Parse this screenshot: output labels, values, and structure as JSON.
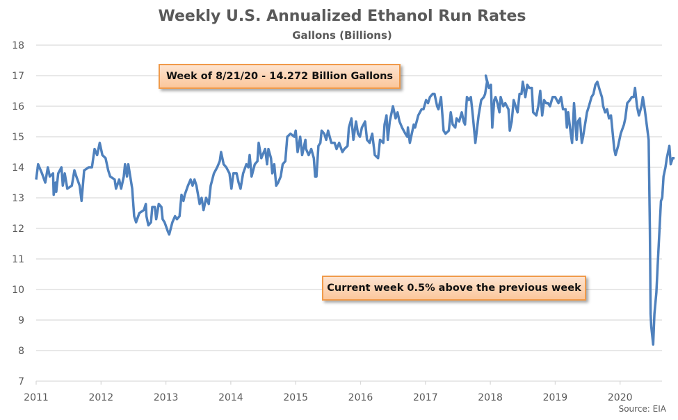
{
  "chart_data": {
    "type": "line",
    "title": "Weekly U.S. Annualized Ethanol Run Rates",
    "subtitle": "Gallons (Billions)",
    "xlabel": "",
    "ylabel": "",
    "xlim": [
      2011,
      2020.67
    ],
    "ylim": [
      7,
      18
    ],
    "x_ticks": [
      "2011",
      "2012",
      "2013",
      "2014",
      "2015",
      "2016",
      "2017",
      "2018",
      "2019",
      "2020"
    ],
    "y_ticks": [
      "7",
      "8",
      "9",
      "10",
      "11",
      "12",
      "13",
      "14",
      "15",
      "16",
      "17",
      "18"
    ],
    "grid": true,
    "line_color": "#4f81bd",
    "series": [
      {
        "name": "Annualized Ethanol Run Rate",
        "points": [
          [
            2011.0,
            13.6
          ],
          [
            2011.03,
            14.1
          ],
          [
            2011.09,
            13.8
          ],
          [
            2011.14,
            13.5
          ],
          [
            2011.18,
            14.0
          ],
          [
            2011.21,
            13.7
          ],
          [
            2011.26,
            13.8
          ],
          [
            2011.27,
            13.1
          ],
          [
            2011.3,
            13.5
          ],
          [
            2011.31,
            13.2
          ],
          [
            2011.34,
            13.8
          ],
          [
            2011.39,
            14.0
          ],
          [
            2011.41,
            13.4
          ],
          [
            2011.44,
            13.8
          ],
          [
            2011.48,
            13.3
          ],
          [
            2011.55,
            13.4
          ],
          [
            2011.59,
            13.9
          ],
          [
            2011.62,
            13.7
          ],
          [
            2011.67,
            13.4
          ],
          [
            2011.7,
            12.9
          ],
          [
            2011.74,
            13.9
          ],
          [
            2011.81,
            14.0
          ],
          [
            2011.86,
            14.0
          ],
          [
            2011.88,
            14.3
          ],
          [
            2011.9,
            14.6
          ],
          [
            2011.94,
            14.4
          ],
          [
            2011.98,
            14.8
          ],
          [
            2012.02,
            14.4
          ],
          [
            2012.07,
            14.3
          ],
          [
            2012.11,
            13.9
          ],
          [
            2012.14,
            13.7
          ],
          [
            2012.21,
            13.6
          ],
          [
            2012.23,
            13.3
          ],
          [
            2012.28,
            13.6
          ],
          [
            2012.31,
            13.3
          ],
          [
            2012.35,
            13.7
          ],
          [
            2012.37,
            14.1
          ],
          [
            2012.4,
            13.7
          ],
          [
            2012.42,
            14.1
          ],
          [
            2012.48,
            13.3
          ],
          [
            2012.51,
            12.4
          ],
          [
            2012.54,
            12.2
          ],
          [
            2012.59,
            12.5
          ],
          [
            2012.66,
            12.6
          ],
          [
            2012.69,
            12.8
          ],
          [
            2012.7,
            12.4
          ],
          [
            2012.73,
            12.1
          ],
          [
            2012.77,
            12.2
          ],
          [
            2012.79,
            12.7
          ],
          [
            2012.83,
            12.7
          ],
          [
            2012.85,
            12.3
          ],
          [
            2012.89,
            12.8
          ],
          [
            2012.93,
            12.7
          ],
          [
            2012.95,
            12.3
          ],
          [
            2012.98,
            12.2
          ],
          [
            2013.03,
            11.9
          ],
          [
            2013.05,
            11.8
          ],
          [
            2013.1,
            12.2
          ],
          [
            2013.14,
            12.4
          ],
          [
            2013.17,
            12.3
          ],
          [
            2013.21,
            12.4
          ],
          [
            2013.24,
            13.1
          ],
          [
            2013.27,
            12.9
          ],
          [
            2013.29,
            13.1
          ],
          [
            2013.34,
            13.4
          ],
          [
            2013.38,
            13.6
          ],
          [
            2013.41,
            13.4
          ],
          [
            2013.44,
            13.6
          ],
          [
            2013.47,
            13.4
          ],
          [
            2013.52,
            12.8
          ],
          [
            2013.55,
            13.0
          ],
          [
            2013.58,
            12.6
          ],
          [
            2013.62,
            13.0
          ],
          [
            2013.66,
            12.8
          ],
          [
            2013.69,
            13.4
          ],
          [
            2013.74,
            13.8
          ],
          [
            2013.79,
            14.0
          ],
          [
            2013.83,
            14.2
          ],
          [
            2013.85,
            14.5
          ],
          [
            2013.89,
            14.1
          ],
          [
            2013.93,
            14.0
          ],
          [
            2013.98,
            13.8
          ],
          [
            2014.01,
            13.3
          ],
          [
            2014.04,
            13.8
          ],
          [
            2014.09,
            13.8
          ],
          [
            2014.12,
            13.5
          ],
          [
            2014.15,
            13.3
          ],
          [
            2014.19,
            13.8
          ],
          [
            2014.24,
            14.1
          ],
          [
            2014.27,
            14.0
          ],
          [
            2014.29,
            14.4
          ],
          [
            2014.32,
            13.7
          ],
          [
            2014.37,
            14.1
          ],
          [
            2014.41,
            14.2
          ],
          [
            2014.43,
            14.8
          ],
          [
            2014.47,
            14.3
          ],
          [
            2014.53,
            14.6
          ],
          [
            2014.56,
            14.1
          ],
          [
            2014.58,
            14.6
          ],
          [
            2014.62,
            14.3
          ],
          [
            2014.64,
            13.8
          ],
          [
            2014.67,
            14.1
          ],
          [
            2014.7,
            13.4
          ],
          [
            2014.73,
            13.5
          ],
          [
            2014.77,
            13.7
          ],
          [
            2014.8,
            14.1
          ],
          [
            2014.84,
            14.2
          ],
          [
            2014.87,
            15.0
          ],
          [
            2014.92,
            15.1
          ],
          [
            2014.98,
            15.0
          ],
          [
            2015.0,
            15.2
          ],
          [
            2015.03,
            14.5
          ],
          [
            2015.07,
            15.0
          ],
          [
            2015.1,
            14.4
          ],
          [
            2015.15,
            14.9
          ],
          [
            2015.16,
            14.6
          ],
          [
            2015.2,
            14.4
          ],
          [
            2015.24,
            14.6
          ],
          [
            2015.28,
            14.3
          ],
          [
            2015.3,
            13.7
          ],
          [
            2015.32,
            13.7
          ],
          [
            2015.35,
            14.7
          ],
          [
            2015.38,
            14.8
          ],
          [
            2015.4,
            15.2
          ],
          [
            2015.44,
            15.1
          ],
          [
            2015.47,
            14.9
          ],
          [
            2015.5,
            15.2
          ],
          [
            2015.55,
            14.8
          ],
          [
            2015.6,
            14.8
          ],
          [
            2015.63,
            14.6
          ],
          [
            2015.67,
            14.8
          ],
          [
            2015.72,
            14.5
          ],
          [
            2015.75,
            14.6
          ],
          [
            2015.8,
            14.7
          ],
          [
            2015.82,
            15.3
          ],
          [
            2015.86,
            15.6
          ],
          [
            2015.89,
            14.9
          ],
          [
            2015.93,
            15.5
          ],
          [
            2015.96,
            15.1
          ],
          [
            2015.99,
            15.0
          ],
          [
            2016.02,
            15.3
          ],
          [
            2016.07,
            15.5
          ],
          [
            2016.1,
            14.9
          ],
          [
            2016.14,
            14.8
          ],
          [
            2016.18,
            15.1
          ],
          [
            2016.22,
            14.4
          ],
          [
            2016.27,
            14.3
          ],
          [
            2016.3,
            14.9
          ],
          [
            2016.35,
            14.8
          ],
          [
            2016.37,
            15.4
          ],
          [
            2016.4,
            15.7
          ],
          [
            2016.42,
            14.9
          ],
          [
            2016.45,
            15.5
          ],
          [
            2016.5,
            16.0
          ],
          [
            2016.54,
            15.6
          ],
          [
            2016.57,
            15.8
          ],
          [
            2016.6,
            15.5
          ],
          [
            2016.64,
            15.3
          ],
          [
            2016.69,
            15.1
          ],
          [
            2016.72,
            15.0
          ],
          [
            2016.73,
            15.3
          ],
          [
            2016.76,
            14.8
          ],
          [
            2016.82,
            15.4
          ],
          [
            2016.84,
            15.3
          ],
          [
            2016.89,
            15.7
          ],
          [
            2016.94,
            15.9
          ],
          [
            2016.97,
            15.9
          ],
          [
            2017.01,
            16.2
          ],
          [
            2017.04,
            16.1
          ],
          [
            2017.07,
            16.3
          ],
          [
            2017.11,
            16.4
          ],
          [
            2017.14,
            16.4
          ],
          [
            2017.18,
            16.0
          ],
          [
            2017.2,
            15.9
          ],
          [
            2017.24,
            16.3
          ],
          [
            2017.28,
            15.2
          ],
          [
            2017.31,
            15.1
          ],
          [
            2017.36,
            15.2
          ],
          [
            2017.39,
            15.8
          ],
          [
            2017.42,
            15.4
          ],
          [
            2017.46,
            15.3
          ],
          [
            2017.48,
            15.6
          ],
          [
            2017.52,
            15.5
          ],
          [
            2017.56,
            15.8
          ],
          [
            2017.59,
            15.5
          ],
          [
            2017.61,
            15.4
          ],
          [
            2017.64,
            16.3
          ],
          [
            2017.67,
            16.2
          ],
          [
            2017.7,
            16.3
          ],
          [
            2017.73,
            15.7
          ],
          [
            2017.77,
            14.8
          ],
          [
            2017.82,
            15.7
          ],
          [
            2017.86,
            16.2
          ],
          [
            2017.9,
            16.3
          ],
          [
            2017.92,
            16.4
          ],
          [
            2017.95,
            16.8
          ],
          [
            2017.93,
            17.0
          ],
          [
            2017.98,
            16.6
          ],
          [
            2018.01,
            16.7
          ],
          [
            2018.03,
            15.3
          ],
          [
            2018.06,
            16.2
          ],
          [
            2018.08,
            16.3
          ],
          [
            2018.11,
            16.1
          ],
          [
            2018.14,
            15.8
          ],
          [
            2018.16,
            16.3
          ],
          [
            2018.2,
            16.0
          ],
          [
            2018.23,
            16.1
          ],
          [
            2018.28,
            15.9
          ],
          [
            2018.3,
            15.2
          ],
          [
            2018.33,
            15.5
          ],
          [
            2018.36,
            16.2
          ],
          [
            2018.39,
            16.0
          ],
          [
            2018.42,
            15.8
          ],
          [
            2018.45,
            16.4
          ],
          [
            2018.48,
            16.4
          ],
          [
            2018.5,
            16.8
          ],
          [
            2018.54,
            16.3
          ],
          [
            2018.57,
            16.7
          ],
          [
            2018.6,
            16.6
          ],
          [
            2018.64,
            16.6
          ],
          [
            2018.66,
            15.8
          ],
          [
            2018.71,
            15.7
          ],
          [
            2018.74,
            16.0
          ],
          [
            2018.77,
            16.5
          ],
          [
            2018.8,
            15.7
          ],
          [
            2018.83,
            16.2
          ],
          [
            2018.86,
            16.1
          ],
          [
            2018.89,
            16.1
          ],
          [
            2018.92,
            16.0
          ],
          [
            2018.96,
            16.3
          ],
          [
            2019.0,
            16.3
          ],
          [
            2019.05,
            16.1
          ],
          [
            2019.09,
            16.3
          ],
          [
            2019.12,
            15.9
          ],
          [
            2019.16,
            15.9
          ],
          [
            2019.18,
            15.3
          ],
          [
            2019.2,
            15.8
          ],
          [
            2019.24,
            15.1
          ],
          [
            2019.26,
            14.8
          ],
          [
            2019.29,
            16.1
          ],
          [
            2019.33,
            14.9
          ],
          [
            2019.35,
            15.5
          ],
          [
            2019.38,
            15.6
          ],
          [
            2019.41,
            14.8
          ],
          [
            2019.43,
            15.0
          ],
          [
            2019.46,
            15.4
          ],
          [
            2019.49,
            15.8
          ],
          [
            2019.52,
            16.0
          ],
          [
            2019.56,
            16.3
          ],
          [
            2019.59,
            16.4
          ],
          [
            2019.62,
            16.7
          ],
          [
            2019.65,
            16.8
          ],
          [
            2019.69,
            16.5
          ],
          [
            2019.72,
            16.3
          ],
          [
            2019.74,
            16.0
          ],
          [
            2019.77,
            15.8
          ],
          [
            2019.8,
            15.9
          ],
          [
            2019.83,
            15.6
          ],
          [
            2019.86,
            15.7
          ],
          [
            2019.91,
            14.6
          ],
          [
            2019.93,
            14.4
          ],
          [
            2019.97,
            14.7
          ],
          [
            2020.01,
            15.1
          ],
          [
            2020.06,
            15.4
          ],
          [
            2020.08,
            15.6
          ],
          [
            2020.11,
            16.1
          ],
          [
            2020.15,
            16.2
          ],
          [
            2020.18,
            16.3
          ],
          [
            2020.21,
            16.3
          ],
          [
            2020.23,
            16.6
          ],
          [
            2020.26,
            16.0
          ],
          [
            2020.29,
            15.7
          ],
          [
            2020.33,
            16.0
          ],
          [
            2020.35,
            16.3
          ],
          [
            2020.38,
            15.9
          ],
          [
            2020.41,
            15.4
          ],
          [
            2020.44,
            14.9
          ],
          [
            2020.46,
            11.9
          ],
          [
            2020.47,
            9.2
          ],
          [
            2020.48,
            8.8
          ],
          [
            2020.51,
            8.2
          ],
          [
            2020.53,
            9.2
          ],
          [
            2020.56,
            9.9
          ],
          [
            2020.58,
            10.8
          ],
          [
            2020.63,
            12.9
          ],
          [
            2020.65,
            13.0
          ],
          [
            2020.67,
            13.7
          ],
          [
            2020.7,
            14.0
          ],
          [
            2020.72,
            14.3
          ],
          [
            2020.76,
            14.7
          ],
          [
            2020.78,
            14.1
          ],
          [
            2020.81,
            14.3
          ],
          [
            2020.84,
            14.3
          ]
        ]
      }
    ],
    "annotations": [
      "Week of 8/21/20 - 14.272 Billion Gallons",
      "Current week 0.5% above the previous week"
    ],
    "source": "Source: EIA"
  }
}
